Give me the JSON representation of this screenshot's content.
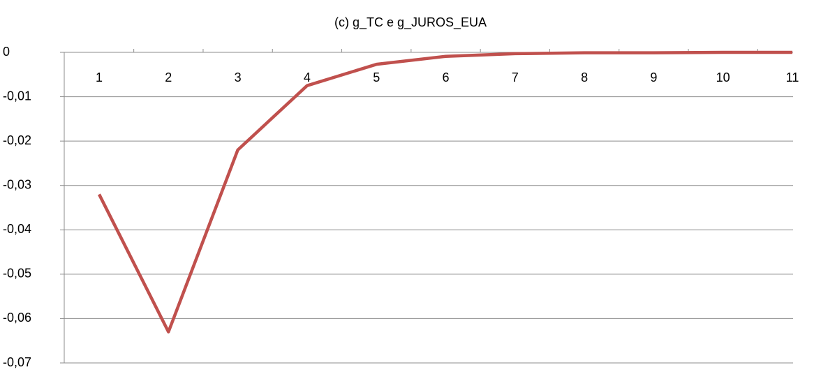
{
  "chart_data": {
    "type": "line",
    "title": "(c) g_TC e g_JUROS_EUA",
    "categories": [
      "1",
      "2",
      "3",
      "4",
      "5",
      "6",
      "7",
      "8",
      "9",
      "10",
      "11"
    ],
    "series": [
      {
        "name": "g_TC e g_JUROS_EUA",
        "color": "#c0504d",
        "values": [
          -0.032,
          -0.063,
          -0.022,
          -0.0075,
          -0.0027,
          -0.0009,
          -0.0003,
          -0.0001,
          -0.0001,
          0,
          0
        ]
      }
    ],
    "ylim": [
      -0.07,
      0
    ],
    "yticks": [
      {
        "value": -0.07,
        "label": "-0,07"
      },
      {
        "value": -0.06,
        "label": "-0,06"
      },
      {
        "value": -0.05,
        "label": "-0,05"
      },
      {
        "value": -0.04,
        "label": "-0,04"
      },
      {
        "value": -0.03,
        "label": "-0,03"
      },
      {
        "value": -0.02,
        "label": "-0,02"
      },
      {
        "value": -0.01,
        "label": "-0,01"
      },
      0
    ],
    "grid": true
  }
}
